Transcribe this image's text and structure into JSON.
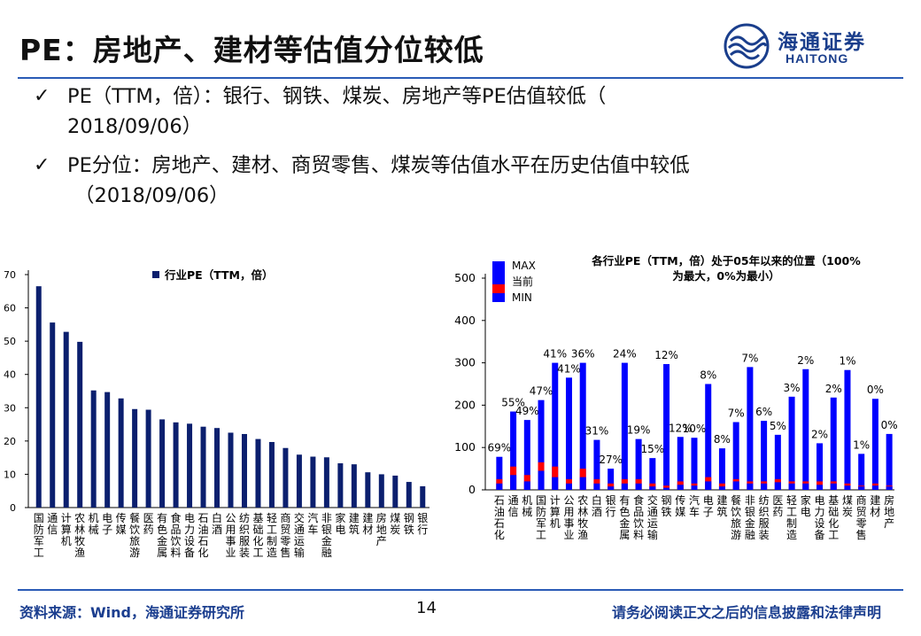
{
  "header": {
    "title": "PE：房地产、建材等估值分位较低",
    "logo_cn": "海通证券",
    "logo_en": "HAITONG"
  },
  "bullets": [
    {
      "line1": "PE（TTM，倍）：银行、钢铁、煤炭、房地产等PE估值较低（",
      "line2": "2018/09/06）"
    },
    {
      "line1": "PE分位：房地产、建材、商贸零售、煤炭等估值水平在历史估值中较低",
      "line2": "（2018/09/06）"
    }
  ],
  "footer": {
    "source": "资料来源：Wind，海通证券研究所",
    "page": "14",
    "disclaimer": "请务必阅读正文之后的信息披露和法律声明"
  },
  "colors": {
    "bar_blue": "#0b1f6e",
    "max_blue": "#0000ff",
    "current_red": "#ff0000",
    "accent": "#1b3e8f"
  },
  "chart_data": [
    {
      "type": "bar",
      "title": "",
      "legend": "行业PE（TTM，倍）",
      "legend_position": "top-center",
      "categories": [
        "国防军工",
        "通信",
        "计算机",
        "农林牧渔",
        "机械",
        "电子",
        "传媒",
        "餐饮旅游",
        "医药",
        "有色金属",
        "食品饮料",
        "电力设备",
        "石油石化",
        "白酒",
        "公用事业",
        "纺织服装",
        "基础化工",
        "轻工制造",
        "商贸零售",
        "交通运输",
        "汽车",
        "非银金融",
        "家电",
        "建筑",
        "建材",
        "房地产",
        "煤炭",
        "钢铁",
        "银行"
      ],
      "values": [
        66.5,
        55.6,
        52.8,
        49.8,
        35.2,
        34.7,
        32.8,
        29.6,
        29.4,
        26.5,
        25.6,
        25.2,
        24.3,
        23.9,
        22.5,
        22.1,
        20.6,
        19.7,
        17.9,
        15.9,
        15.3,
        15.1,
        13.3,
        13.0,
        10.6,
        10.0,
        9.6,
        7.7,
        6.4
      ],
      "ylim": [
        0,
        70
      ],
      "yticks": [
        "0",
        "10",
        "20",
        "30",
        "40",
        "50",
        "60",
        "70"
      ]
    },
    {
      "type": "bar",
      "title_line1": "各行业PE（TTM，倍）处于05年以来的位置（100%",
      "title_line2": "为最大，0%为最小）",
      "legend": [
        "MAX",
        "当前",
        "MIN"
      ],
      "legend_position": "top-left",
      "ylim": [
        0,
        500
      ],
      "yticks": [
        "0",
        "100",
        "200",
        "300",
        "400",
        "500"
      ],
      "categories": [
        "石油石化",
        "通信",
        "机械",
        "国防军工",
        "计算机",
        "公用事业",
        "农林牧渔",
        "白酒",
        "银行",
        "有色金属",
        "食品饮料",
        "交通运输",
        "钢铁",
        "传媒",
        "汽车",
        "电子",
        "建筑",
        "餐饮旅游",
        "非银金融",
        "纺织服装",
        "医药",
        "轻工制造",
        "家电",
        "电力设备",
        "基础化工",
        "煤炭",
        "商贸零售",
        "建材",
        "房地产"
      ],
      "max": [
        78,
        185,
        165,
        212,
        300,
        265,
        300,
        118,
        50,
        300,
        120,
        75,
        297,
        125,
        123,
        250,
        98,
        160,
        290,
        163,
        130,
        220,
        285,
        110,
        218,
        283,
        85,
        215,
        132
      ],
      "current": [
        25,
        55,
        35,
        65,
        55,
        25,
        50,
        25,
        15,
        25,
        25,
        15,
        10,
        20,
        15,
        30,
        15,
        25,
        20,
        20,
        25,
        20,
        20,
        20,
        20,
        15,
        10,
        15,
        10
      ],
      "min": [
        15,
        35,
        20,
        45,
        30,
        15,
        30,
        15,
        8,
        15,
        15,
        8,
        5,
        12,
        10,
        20,
        8,
        20,
        15,
        15,
        18,
        15,
        15,
        12,
        15,
        10,
        8,
        10,
        8
      ],
      "labels": [
        "69%",
        "55%",
        "49%",
        "47%",
        "41%",
        "41%",
        "36%",
        "31%",
        "27%",
        "24%",
        "19%",
        "15%",
        "12%",
        "12%",
        "10%",
        "8%",
        "8%",
        "7%",
        "7%",
        "6%",
        "5%",
        "3%",
        "2%",
        "2%",
        "2%",
        "1%",
        "1%",
        "0%",
        "0%"
      ],
      "label_offsets": [
        0,
        0,
        0,
        0,
        0,
        0,
        0,
        0,
        0,
        0,
        0,
        0,
        1,
        0,
        0,
        0,
        0,
        0,
        0,
        0,
        0,
        0,
        0,
        0,
        0,
        0,
        0,
        0,
        0
      ]
    }
  ]
}
